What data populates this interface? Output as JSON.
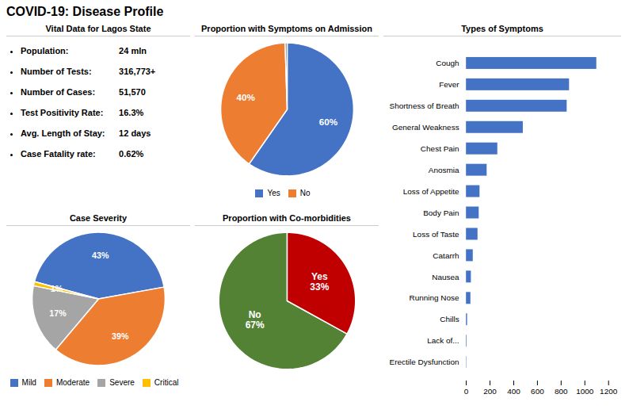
{
  "title": "COVID-19: Disease Profile",
  "chart_data": [
    {
      "type": "table",
      "title": "Vital Data for Lagos State",
      "rows": [
        [
          "Population:",
          "24 mln"
        ],
        [
          "Number of Tests:",
          "316,773+"
        ],
        [
          "Number of Cases:",
          "51,570"
        ],
        [
          "Test Positivity Rate:",
          "16.3%"
        ],
        [
          "Avg. Length of Stay:",
          "12 days"
        ],
        [
          "Case Fatality rate:",
          "0.62%"
        ]
      ]
    },
    {
      "type": "pie",
      "title": "Proportion with Symptoms on Admission",
      "categories": [
        "Yes",
        "No",
        null
      ],
      "values": [
        60,
        40,
        0.5
      ],
      "value_labels": [
        "60%",
        "40%",
        null
      ],
      "colors": [
        "#4472C4",
        "#ED7D31",
        "#7f7f7f"
      ],
      "data_labels": true,
      "legend": "bottom"
    },
    {
      "type": "bar",
      "title": "Types of Symptoms",
      "orientation": "horizontal",
      "categories": [
        "Cough",
        "Fever",
        "Shortness of Breath",
        "General Weakness",
        "Chest Pain",
        "Anosmia",
        "Loss of Appetite",
        "Body Pain",
        "Loss of Taste",
        "Catarrh",
        "Nausea",
        "Running Nose",
        "Chills",
        "Lack of...",
        "Erectile Dysfunction"
      ],
      "values": [
        1100,
        870,
        850,
        480,
        265,
        175,
        115,
        108,
        98,
        58,
        42,
        38,
        10,
        5,
        3
      ],
      "color": "#4472C4",
      "xlim": [
        0,
        1200
      ],
      "xticks": [
        0,
        200,
        400,
        600,
        800,
        1000,
        1200
      ],
      "grid": false
    },
    {
      "type": "pie",
      "title": "Case Severity",
      "categories": [
        "Mild",
        "Moderate",
        "Severe",
        "Critical"
      ],
      "values": [
        43,
        39,
        17,
        1
      ],
      "value_labels": [
        "43%",
        "39%",
        "17%",
        "1%"
      ],
      "colors": [
        "#4472C4",
        "#ED7D31",
        "#A5A5A5",
        "#FFC000"
      ],
      "data_labels": true,
      "legend": "bottom"
    },
    {
      "type": "pie",
      "title": "Proportion with Co-morbidities",
      "categories": [
        "No",
        "Yes"
      ],
      "values": [
        67,
        33
      ],
      "value_labels": [
        "67%",
        "33%"
      ],
      "colors": [
        "#548235",
        "#C00000"
      ],
      "data_labels": true
    }
  ]
}
